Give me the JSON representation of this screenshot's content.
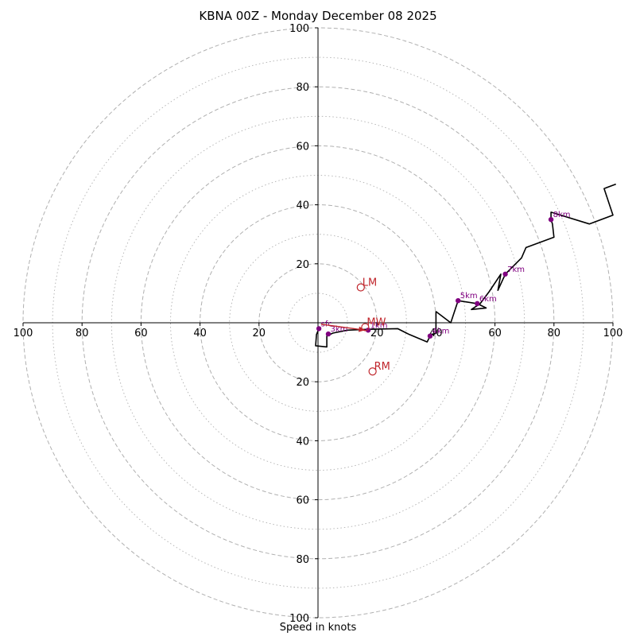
{
  "chart_data": {
    "type": "hodograph",
    "title": "KBNA 00Z - Monday December 08 2025",
    "xlabel": "Speed in knots",
    "xlim": [
      -100,
      100
    ],
    "ylim": [
      -100,
      100
    ],
    "ring_major": [
      20,
      40,
      60,
      80,
      100
    ],
    "ring_minor": [
      10,
      30,
      50,
      70,
      90
    ],
    "x_ticks": [
      {
        "value": -100,
        "label": "100"
      },
      {
        "value": -80,
        "label": "80"
      },
      {
        "value": -60,
        "label": "60"
      },
      {
        "value": -40,
        "label": "40"
      },
      {
        "value": -20,
        "label": "20"
      },
      {
        "value": 20,
        "label": "20"
      },
      {
        "value": 40,
        "label": "40"
      },
      {
        "value": 60,
        "label": "60"
      },
      {
        "value": 80,
        "label": "80"
      },
      {
        "value": 100,
        "label": "100"
      }
    ],
    "y_ticks": [
      {
        "value": 100,
        "label": "100"
      },
      {
        "value": 80,
        "label": "80"
      },
      {
        "value": 60,
        "label": "60"
      },
      {
        "value": 40,
        "label": "40"
      },
      {
        "value": 20,
        "label": "20"
      },
      {
        "value": -20,
        "label": "20"
      },
      {
        "value": -40,
        "label": "40"
      },
      {
        "value": -60,
        "label": "60"
      },
      {
        "value": -80,
        "label": "80"
      },
      {
        "value": -100,
        "label": "100"
      }
    ],
    "hodograph_trace": [
      [
        0.3,
        -2.0
      ],
      [
        -0.5,
        -4.0
      ],
      [
        -0.8,
        -7.8
      ],
      [
        3.0,
        -8.2
      ],
      [
        3.0,
        -4.5
      ],
      [
        5.0,
        -3.5
      ],
      [
        10.0,
        -2.5
      ],
      [
        17.0,
        -2.2
      ],
      [
        27.0,
        -2.0
      ],
      [
        31.0,
        -4.0
      ],
      [
        37.0,
        -6.5
      ],
      [
        38.0,
        -4.5
      ],
      [
        40.0,
        -3.5
      ],
      [
        40.0,
        3.8
      ],
      [
        45.0,
        0.0
      ],
      [
        47.5,
        7.5
      ],
      [
        54.0,
        6.5
      ],
      [
        57.0,
        5.0
      ],
      [
        52.0,
        4.5
      ],
      [
        55.0,
        6.5
      ],
      [
        58.0,
        10.5
      ],
      [
        62.0,
        16.5
      ],
      [
        61.0,
        11.0
      ],
      [
        63.5,
        16.5
      ],
      [
        69.0,
        22.0
      ],
      [
        70.5,
        25.5
      ],
      [
        80.0,
        29.0
      ],
      [
        79.5,
        33.5
      ],
      [
        79.0,
        35.0
      ],
      [
        79.0,
        37.5
      ],
      [
        92.0,
        33.5
      ],
      [
        100.0,
        36.5
      ],
      [
        97.0,
        45.5
      ],
      [
        101.0,
        47.0
      ]
    ],
    "height_markers": [
      {
        "label": "sfc",
        "u": 0.3,
        "v": -2.0
      },
      {
        "label": "3km",
        "u": 3.5,
        "v": -3.8
      },
      {
        "label": "1km",
        "u": 17.0,
        "v": -2.5
      },
      {
        "label": "4km",
        "u": 38.0,
        "v": -4.5
      },
      {
        "label": "5km",
        "u": 47.5,
        "v": 7.5
      },
      {
        "label": "6km",
        "u": 54.0,
        "v": 6.5
      },
      {
        "label": "7km",
        "u": 63.5,
        "v": 16.5
      },
      {
        "label": "8km",
        "u": 79.0,
        "v": 35.0
      }
    ],
    "storm_motion": [
      {
        "label": "LM",
        "u": 14.5,
        "v": 12.0
      },
      {
        "label": "MW",
        "u": 16.0,
        "v": -1.5
      },
      {
        "label": "RM",
        "u": 18.5,
        "v": -16.5
      }
    ],
    "shear_vector": {
      "from": [
        1.0,
        -0.5
      ],
      "to": [
        16.0,
        -2.5
      ]
    },
    "colors": {
      "trace": "#000000",
      "marker": "#800080",
      "storm": "#c0262c",
      "grid": "#b0b0b0"
    }
  }
}
